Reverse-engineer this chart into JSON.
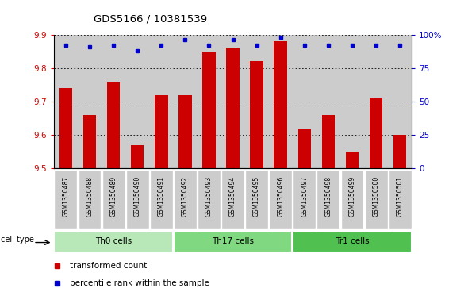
{
  "title": "GDS5166 / 10381539",
  "samples": [
    "GSM1350487",
    "GSM1350488",
    "GSM1350489",
    "GSM1350490",
    "GSM1350491",
    "GSM1350492",
    "GSM1350493",
    "GSM1350494",
    "GSM1350495",
    "GSM1350496",
    "GSM1350497",
    "GSM1350498",
    "GSM1350499",
    "GSM1350500",
    "GSM1350501"
  ],
  "transformed_counts": [
    9.74,
    9.66,
    9.76,
    9.57,
    9.72,
    9.72,
    9.85,
    9.86,
    9.82,
    9.88,
    9.62,
    9.66,
    9.55,
    9.71,
    9.6
  ],
  "percentile_ranks": [
    92,
    91,
    92,
    88,
    92,
    96,
    92,
    96,
    92,
    98,
    92,
    92,
    92,
    92,
    92
  ],
  "groups": [
    {
      "label": "Th0 cells",
      "start": 0,
      "end": 5,
      "color": "#b8e8b8"
    },
    {
      "label": "Th17 cells",
      "start": 5,
      "end": 10,
      "color": "#80d880"
    },
    {
      "label": "Tr1 cells",
      "start": 10,
      "end": 15,
      "color": "#50c050"
    }
  ],
  "ylim_left": [
    9.5,
    9.9
  ],
  "ylim_right": [
    0,
    100
  ],
  "bar_color": "#cc0000",
  "dot_color": "#0000cc",
  "background_color": "#cccccc",
  "grid_color": "black",
  "left_tick_color": "#cc0000",
  "right_tick_color": "#0000cc",
  "right_yticks": [
    0,
    25,
    50,
    75,
    100
  ],
  "right_ytick_labels": [
    "0",
    "25",
    "50",
    "75",
    "100%"
  ],
  "left_yticks": [
    9.5,
    9.6,
    9.7,
    9.8,
    9.9
  ],
  "legend_items": [
    {
      "label": "transformed count",
      "color": "#cc0000"
    },
    {
      "label": "percentile rank within the sample",
      "color": "#0000cc"
    }
  ],
  "cell_type_label": "cell type"
}
